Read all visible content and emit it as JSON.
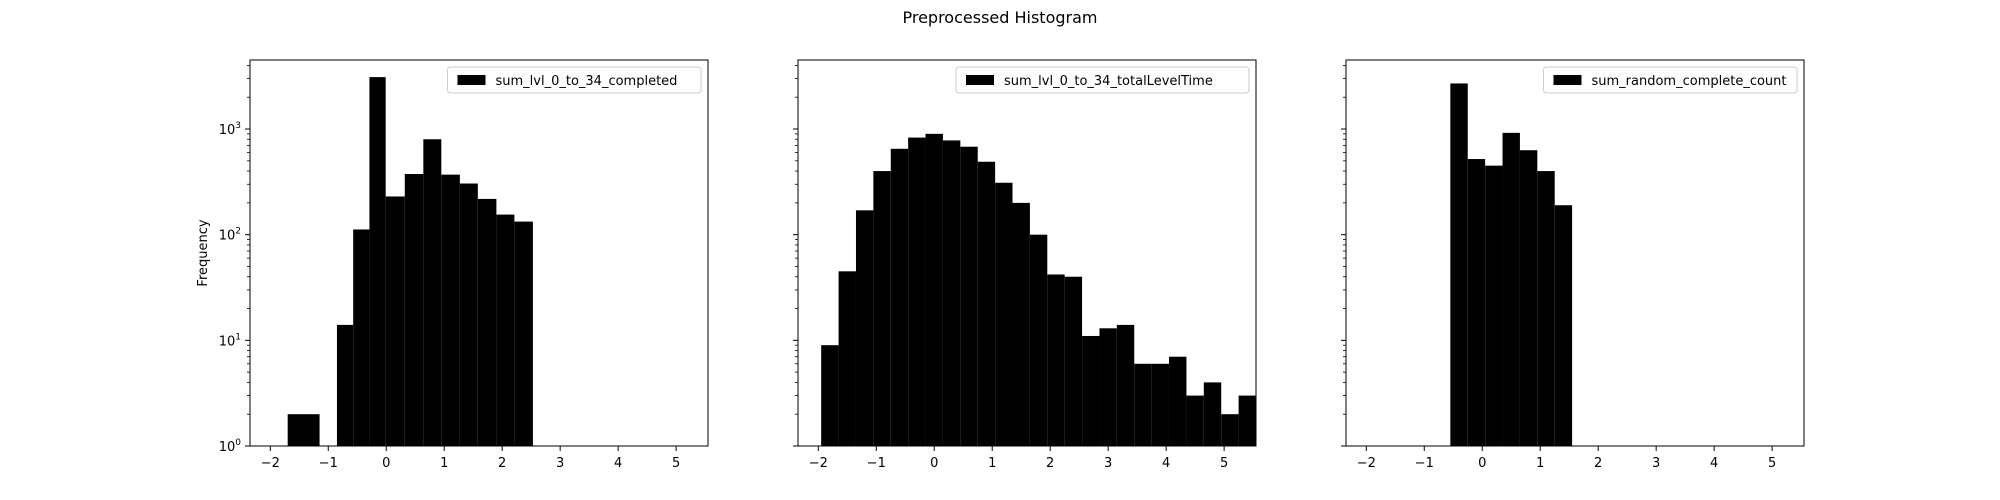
{
  "figure": {
    "title": "Preprocessed Histogram"
  },
  "chart_data": [
    {
      "type": "bar",
      "title": "",
      "xlabel": "",
      "ylabel": "Frequency",
      "yscale": "log",
      "xlim": [
        -2.35,
        5.55
      ],
      "ylim": [
        1,
        4500
      ],
      "xticks": [
        -2,
        -1,
        0,
        1,
        2,
        3,
        4,
        5
      ],
      "yticks": [
        1,
        10,
        100,
        1000
      ],
      "ytick_labels": [
        "10^0",
        "10^1",
        "10^2",
        "10^3"
      ],
      "show_ytick_labels": true,
      "legend": {
        "label": "sum_lvl_0_to_34_completed",
        "position": "upper right"
      },
      "series": [
        {
          "name": "sum_lvl_0_to_34_completed",
          "color": "#000000",
          "bins": [
            {
              "x0": -1.7,
              "x1": -1.15,
              "count": 2
            },
            {
              "x0": -0.85,
              "x1": -0.57,
              "count": 14
            },
            {
              "x0": -0.57,
              "x1": -0.29,
              "count": 112
            },
            {
              "x0": -0.29,
              "x1": -0.01,
              "count": 3100
            },
            {
              "x0": -0.01,
              "x1": 0.32,
              "count": 230
            },
            {
              "x0": 0.32,
              "x1": 0.64,
              "count": 375
            },
            {
              "x0": 0.64,
              "x1": 0.95,
              "count": 800
            },
            {
              "x0": 0.95,
              "x1": 1.27,
              "count": 370
            },
            {
              "x0": 1.27,
              "x1": 1.58,
              "count": 305
            },
            {
              "x0": 1.58,
              "x1": 1.9,
              "count": 218
            },
            {
              "x0": 1.9,
              "x1": 2.21,
              "count": 155
            },
            {
              "x0": 2.21,
              "x1": 2.53,
              "count": 133
            }
          ]
        }
      ]
    },
    {
      "type": "bar",
      "title": "",
      "xlabel": "",
      "ylabel": "",
      "yscale": "log",
      "xlim": [
        -2.35,
        5.55
      ],
      "ylim": [
        1,
        4500
      ],
      "xticks": [
        -2,
        -1,
        0,
        1,
        2,
        3,
        4,
        5
      ],
      "yticks": [
        1,
        10,
        100,
        1000
      ],
      "ytick_labels": [
        "",
        "",
        "",
        ""
      ],
      "show_ytick_labels": false,
      "legend": {
        "label": "sum_lvl_0_to_34_totalLevelTime",
        "position": "upper right"
      },
      "series": [
        {
          "name": "sum_lvl_0_to_34_totalLevelTime",
          "color": "#000000",
          "bins": [
            {
              "x0": -1.95,
              "x1": -1.65,
              "count": 9
            },
            {
              "x0": -1.65,
              "x1": -1.35,
              "count": 45
            },
            {
              "x0": -1.35,
              "x1": -1.05,
              "count": 170
            },
            {
              "x0": -1.05,
              "x1": -0.75,
              "count": 400
            },
            {
              "x0": -0.75,
              "x1": -0.45,
              "count": 650
            },
            {
              "x0": -0.45,
              "x1": -0.15,
              "count": 830
            },
            {
              "x0": -0.15,
              "x1": 0.15,
              "count": 900
            },
            {
              "x0": 0.15,
              "x1": 0.45,
              "count": 780
            },
            {
              "x0": 0.45,
              "x1": 0.75,
              "count": 680
            },
            {
              "x0": 0.75,
              "x1": 1.05,
              "count": 490
            },
            {
              "x0": 1.05,
              "x1": 1.35,
              "count": 310
            },
            {
              "x0": 1.35,
              "x1": 1.65,
              "count": 200
            },
            {
              "x0": 1.65,
              "x1": 1.95,
              "count": 100
            },
            {
              "x0": 1.95,
              "x1": 2.25,
              "count": 42
            },
            {
              "x0": 2.25,
              "x1": 2.55,
              "count": 40
            },
            {
              "x0": 2.55,
              "x1": 2.85,
              "count": 11
            },
            {
              "x0": 2.85,
              "x1": 3.15,
              "count": 13
            },
            {
              "x0": 3.15,
              "x1": 3.45,
              "count": 14
            },
            {
              "x0": 3.45,
              "x1": 3.75,
              "count": 6
            },
            {
              "x0": 3.75,
              "x1": 4.05,
              "count": 6
            },
            {
              "x0": 4.05,
              "x1": 4.35,
              "count": 7
            },
            {
              "x0": 4.35,
              "x1": 4.65,
              "count": 3
            },
            {
              "x0": 4.65,
              "x1": 4.95,
              "count": 4
            },
            {
              "x0": 4.95,
              "x1": 5.25,
              "count": 2
            },
            {
              "x0": 5.25,
              "x1": 5.55,
              "count": 3
            }
          ]
        }
      ]
    },
    {
      "type": "bar",
      "title": "",
      "xlabel": "",
      "ylabel": "",
      "yscale": "log",
      "xlim": [
        -2.35,
        5.55
      ],
      "ylim": [
        1,
        4500
      ],
      "xticks": [
        -2,
        -1,
        0,
        1,
        2,
        3,
        4,
        5
      ],
      "yticks": [
        1,
        10,
        100,
        1000
      ],
      "ytick_labels": [
        "",
        "",
        "",
        ""
      ],
      "show_ytick_labels": false,
      "legend": {
        "label": "sum_random_complete_count",
        "position": "upper right"
      },
      "series": [
        {
          "name": "sum_random_complete_count",
          "color": "#000000",
          "bins": [
            {
              "x0": -0.55,
              "x1": -0.25,
              "count": 2700
            },
            {
              "x0": -0.25,
              "x1": 0.05,
              "count": 520
            },
            {
              "x0": 0.05,
              "x1": 0.35,
              "count": 450
            },
            {
              "x0": 0.35,
              "x1": 0.65,
              "count": 920
            },
            {
              "x0": 0.65,
              "x1": 0.95,
              "count": 630
            },
            {
              "x0": 0.95,
              "x1": 1.25,
              "count": 400
            },
            {
              "x0": 1.25,
              "x1": 1.55,
              "count": 190
            }
          ]
        }
      ]
    }
  ]
}
